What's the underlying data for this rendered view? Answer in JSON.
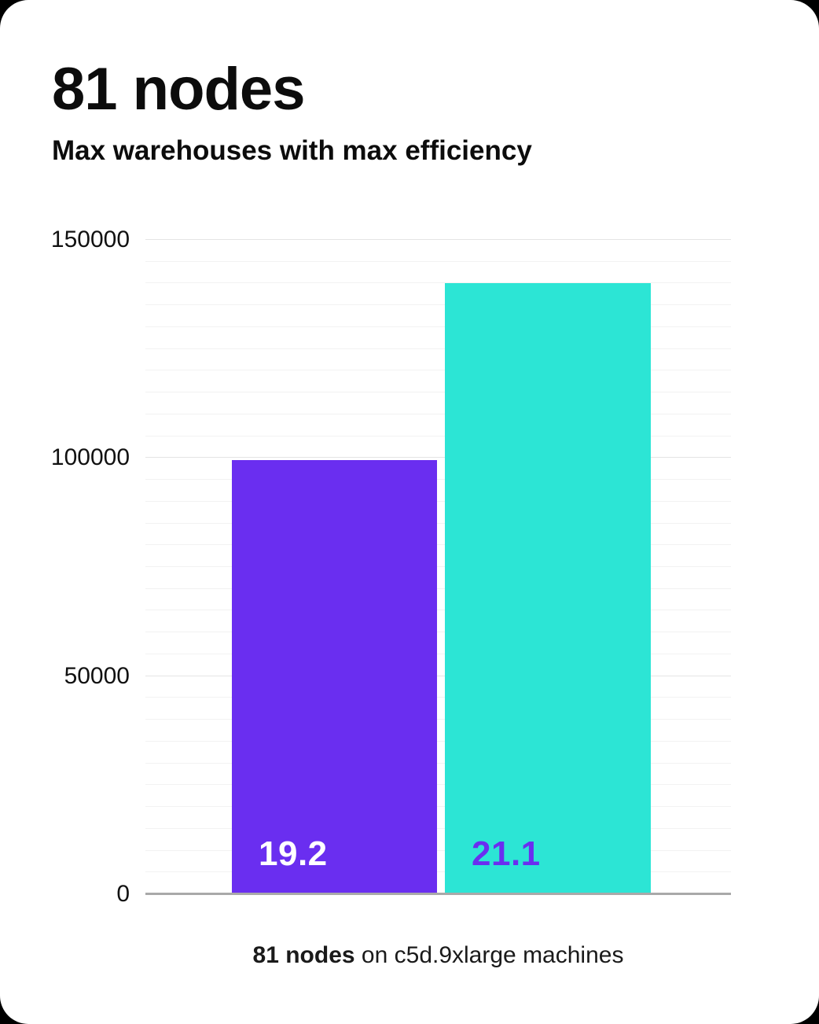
{
  "page": {
    "title": "81 nodes",
    "subtitle": "Max warehouses with max efficiency",
    "caption_bold": "81 nodes",
    "caption_rest": " on c5d.9xlarge machines"
  },
  "colors": {
    "bar1": "#6a2ef0",
    "bar2": "#2ce5d5",
    "bar1_label": "#ffffff",
    "bar2_label": "#6a2ef0",
    "grid_minor": "#f2f2f2",
    "grid_major": "#e4e4e4",
    "axis": "#a9a9a9"
  },
  "chart_data": {
    "type": "bar",
    "title": "81 nodes",
    "subtitle": "Max warehouses with max efficiency",
    "caption": "81 nodes on c5d.9xlarge machines",
    "categories": [
      "19.2",
      "21.1"
    ],
    "values": [
      99500,
      140000
    ],
    "bar_labels": [
      "19.2",
      "21.1"
    ],
    "bar_label_0": "19.2",
    "bar_label_1": "21.1",
    "xlabel": "",
    "ylabel": "",
    "ylim": [
      0,
      150000
    ],
    "yticks": [
      0,
      50000,
      100000,
      150000
    ],
    "grid_minor_step": 5000,
    "grid": "horizontal",
    "legend": "none"
  }
}
